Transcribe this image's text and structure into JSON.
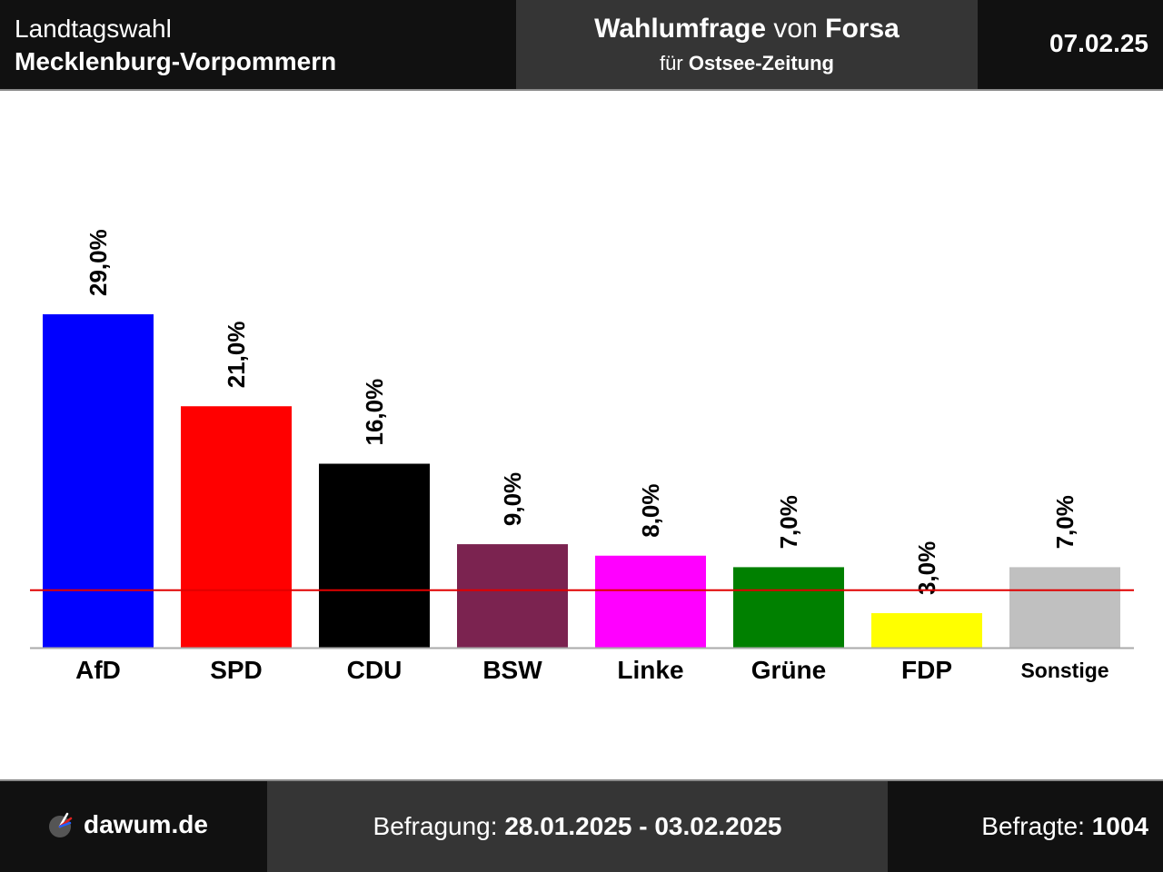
{
  "header": {
    "election_line1": "Landtagswahl",
    "election_line2": "Mecklenburg-Vorpommern",
    "poll_title_word1": "Wahlumfrage",
    "poll_title_word2": "von",
    "poll_title_institute": "Forsa",
    "client_prefix": "für",
    "client_name": "Ostsee-Zeitung",
    "date": "07.02.25"
  },
  "footer": {
    "brand": "dawum.de",
    "survey_label": "Befragung:",
    "survey_period": "28.01.2025 - 03.02.2025",
    "respondents_label": "Befragte:",
    "respondents_count": "1004"
  },
  "colors": {
    "threshold_line": "#e00000",
    "axis_line": "#aaaaaa"
  },
  "chart_data": {
    "type": "bar",
    "categories": [
      "AfD",
      "SPD",
      "CDU",
      "BSW",
      "Linke",
      "Grüne",
      "FDP",
      "Sonstige"
    ],
    "values": [
      29.0,
      21.0,
      16.0,
      9.0,
      8.0,
      7.0,
      3.0,
      7.0
    ],
    "value_labels": [
      "29,0%",
      "21,0%",
      "16,0%",
      "9,0%",
      "8,0%",
      "7,0%",
      "3,0%",
      "7,0%"
    ],
    "colors": [
      "#0000ff",
      "#ff0000",
      "#000000",
      "#7b2350",
      "#ff00ff",
      "#008000",
      "#ffff00",
      "#c0c0c0"
    ],
    "threshold": 5.0,
    "ylim": [
      0,
      29.0
    ],
    "grid": false,
    "legend": "none"
  }
}
